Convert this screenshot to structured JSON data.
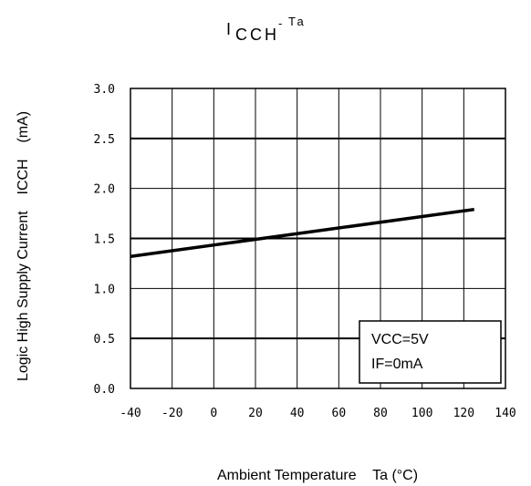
{
  "chart_data": {
    "type": "line",
    "title_main": "I",
    "title_sub": "CCH",
    "title_sep": "-",
    "title_tail": "Ta",
    "xlabel": "Ambient Temperature    Ta (°C)",
    "ylabel": "Logic High Supply Current    ICCH    (mA)",
    "xlim": [
      -40,
      140
    ],
    "ylim": [
      0,
      3.0
    ],
    "xticks": [
      -40,
      -20,
      0,
      20,
      40,
      60,
      80,
      100,
      120,
      140
    ],
    "yticks": [
      "0.0",
      "0.5",
      "1.0",
      "1.5",
      "2.0",
      "2.5",
      "3.0"
    ],
    "ytick_values": [
      0,
      0.5,
      1.0,
      1.5,
      2.0,
      2.5,
      3.0
    ],
    "grid": true,
    "series": [
      {
        "x": [
          -40,
          125
        ],
        "y": [
          1.32,
          1.79
        ],
        "color": "#000000"
      }
    ],
    "legend": {
      "lines": [
        "VCC=5V",
        "IF=0mA"
      ],
      "placement": "bottom-right"
    }
  }
}
